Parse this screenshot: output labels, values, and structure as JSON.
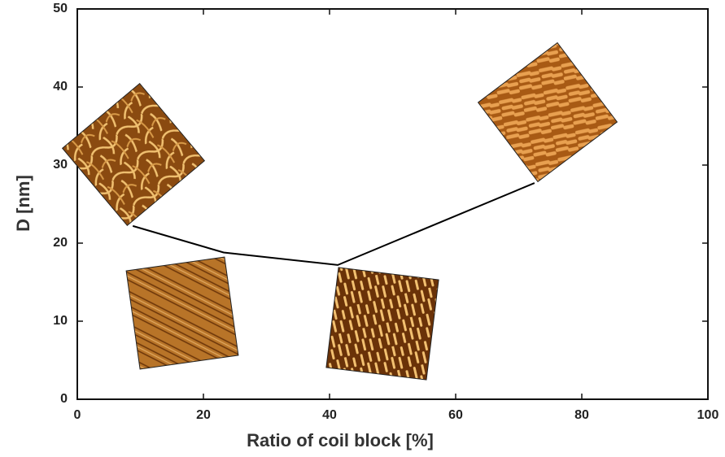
{
  "chart_data": {
    "type": "line",
    "x_label": "Ratio of coil block [%]",
    "y_label": "D [nm]",
    "x": [
      8.8,
      23.2,
      41.3,
      72.5
    ],
    "series": [
      {
        "color": "#000000",
        "values": [
          22.2,
          18.8,
          17.2,
          27.7
        ]
      }
    ],
    "xlim": [
      0,
      100
    ],
    "xticks": [
      0,
      20,
      40,
      60,
      80,
      100
    ],
    "ylim": [
      0,
      50
    ],
    "yticks": [
      0,
      10,
      20,
      30,
      40,
      50
    ],
    "grid": false
  }
}
